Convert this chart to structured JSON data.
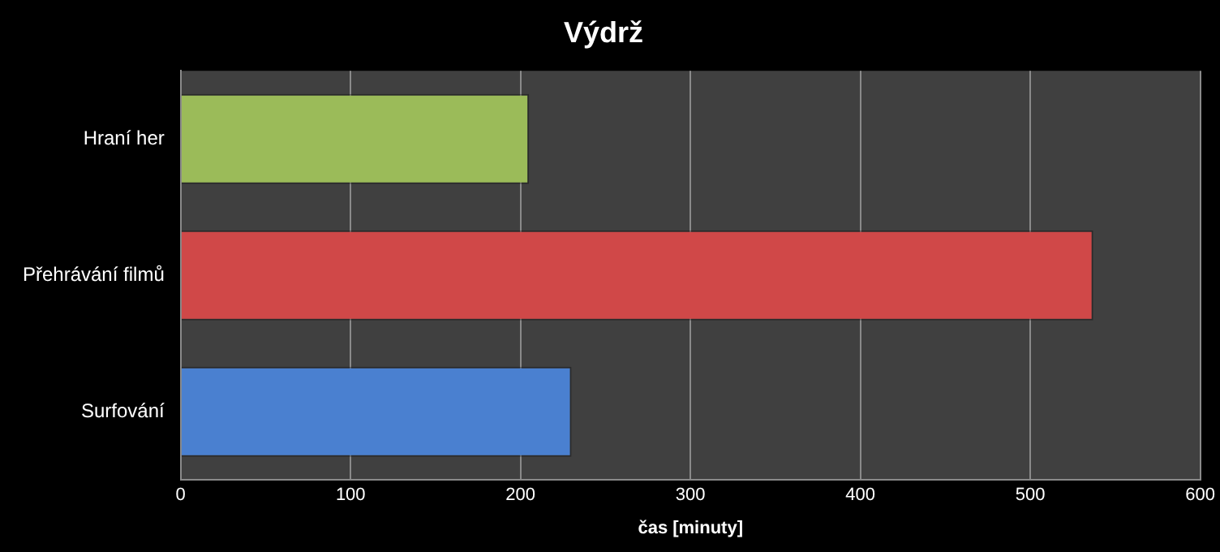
{
  "chart_data": {
    "type": "bar",
    "orientation": "horizontal",
    "title": "Výdrž",
    "xlabel": "čas [minuty]",
    "categories": [
      "Hraní her",
      "Přehrávání filmů",
      "Surfování"
    ],
    "values": [
      205,
      537,
      230
    ],
    "colors": [
      "#9bbb59",
      "#d04848",
      "#4a80d0"
    ],
    "xlim": [
      0,
      600
    ],
    "xticks": [
      0,
      100,
      200,
      300,
      400,
      500,
      600
    ],
    "grid": "x",
    "legend": false
  }
}
